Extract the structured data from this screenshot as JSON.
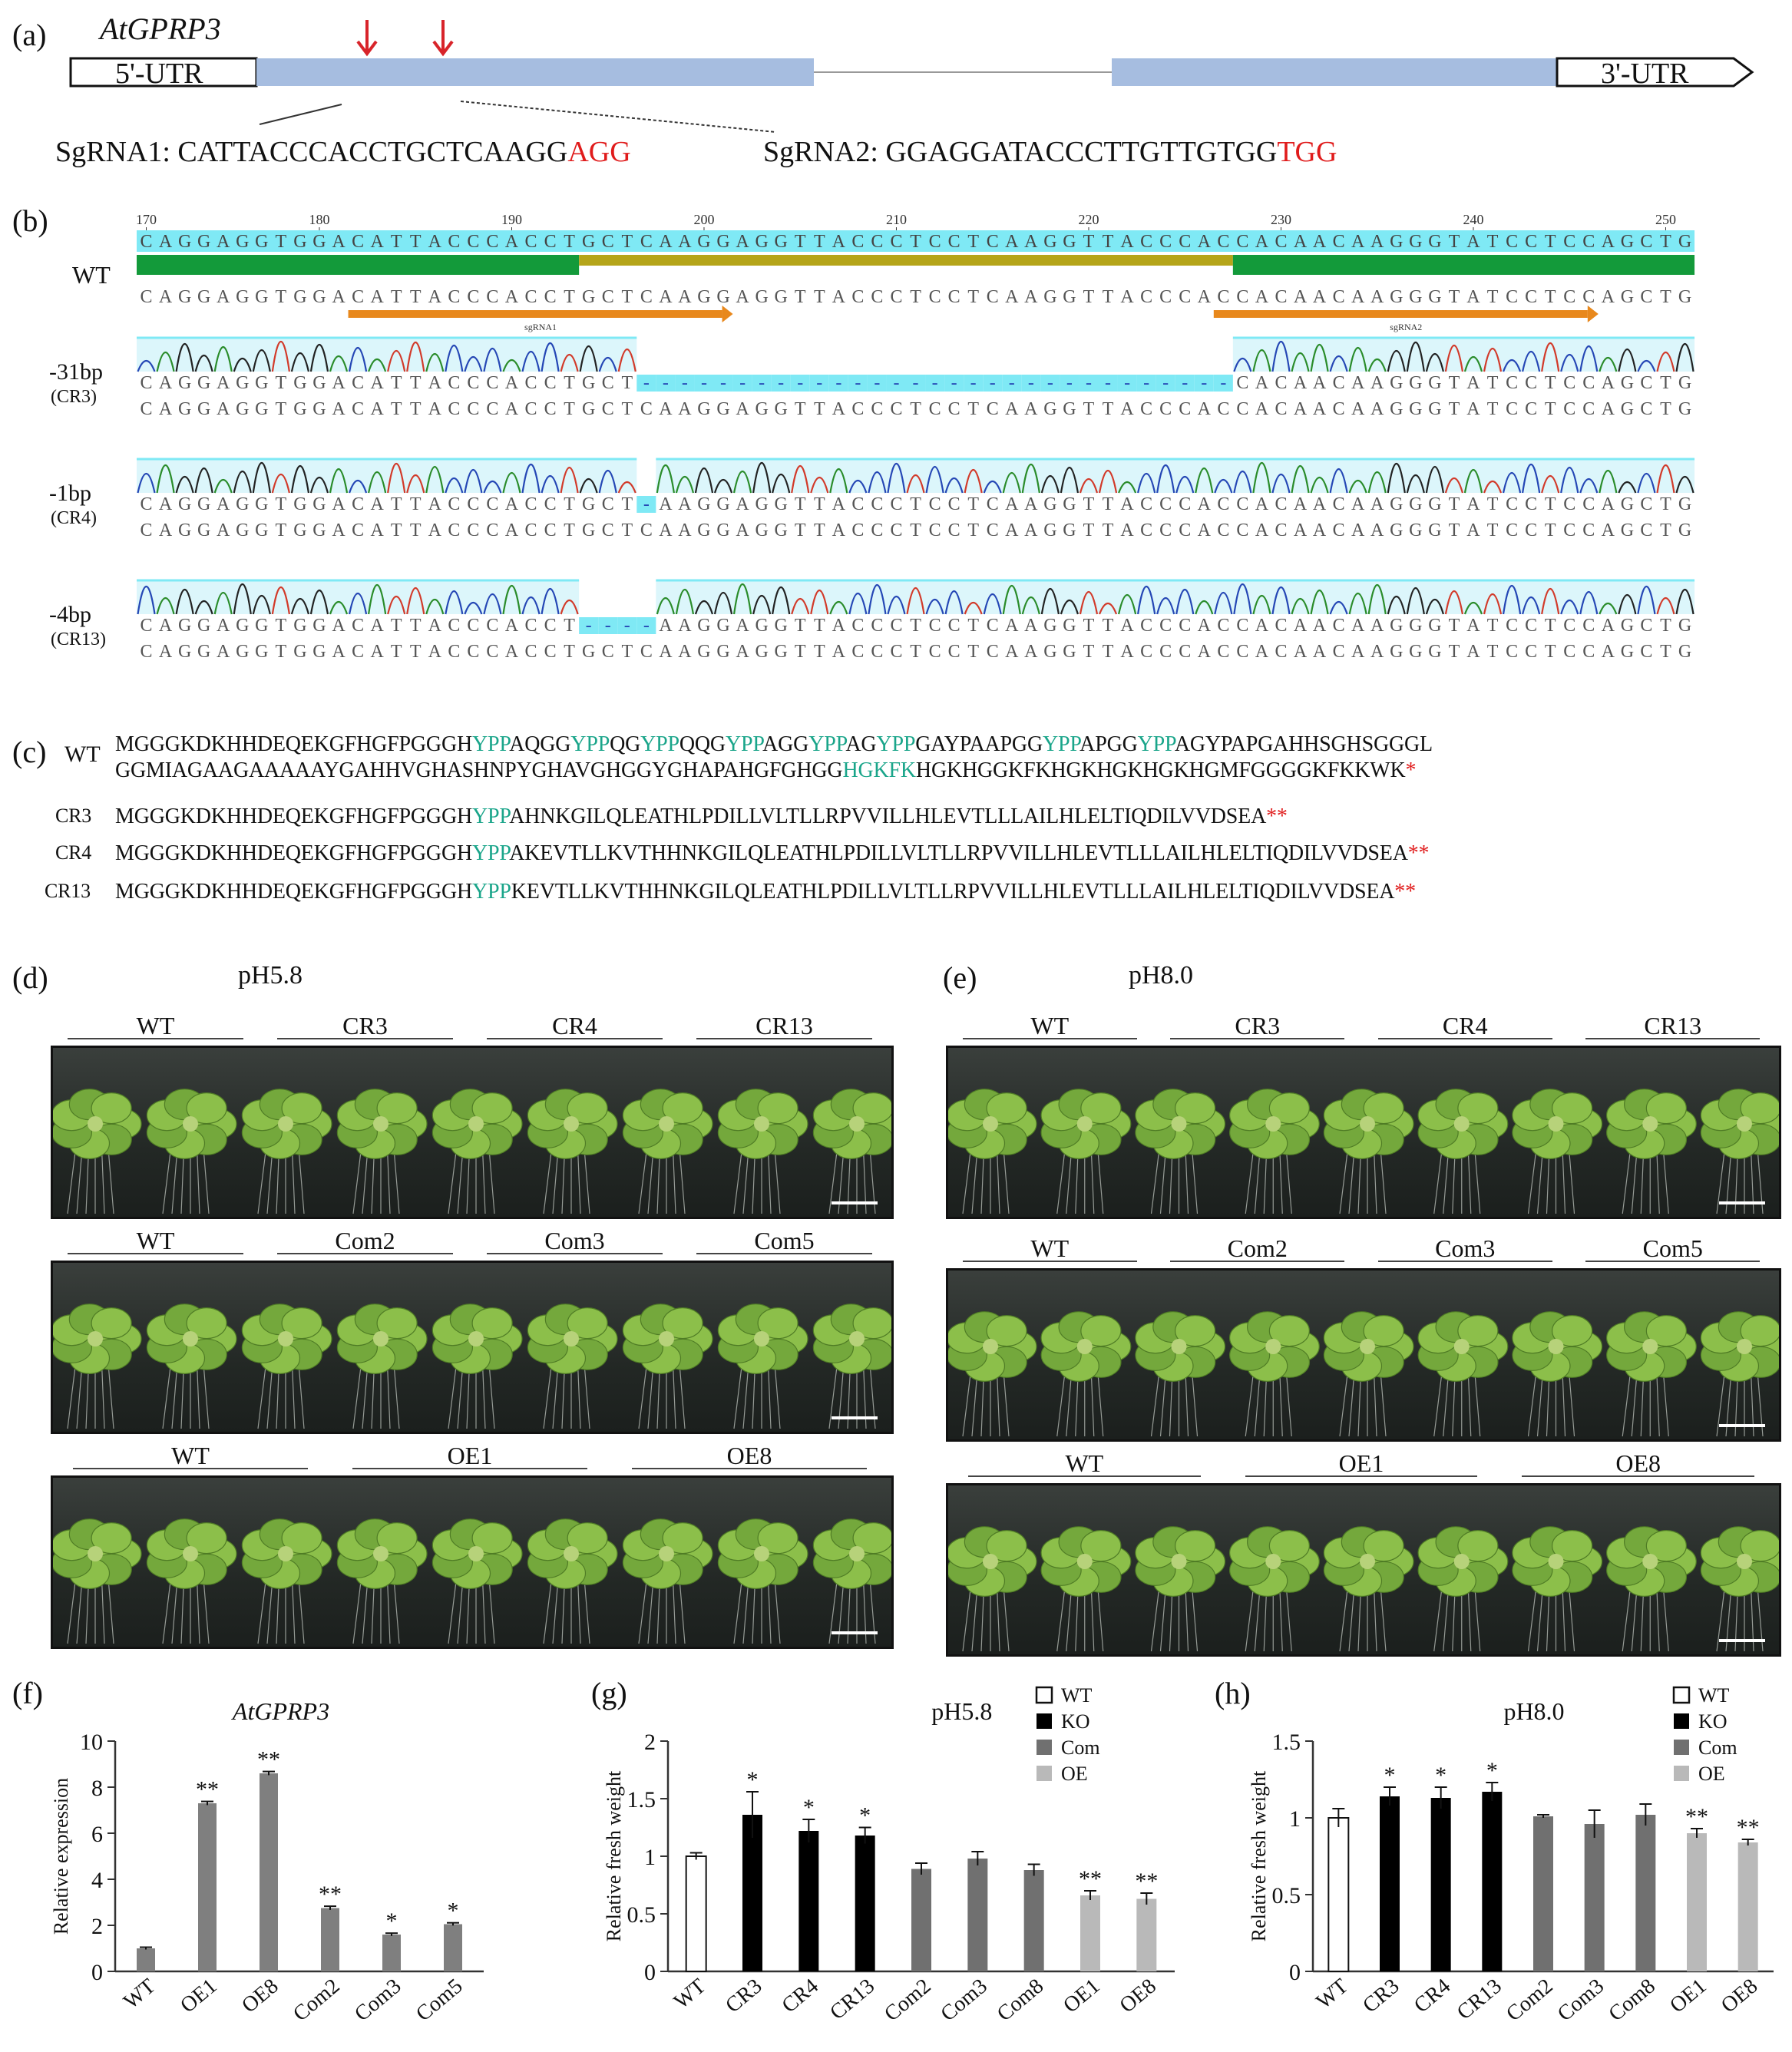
{
  "panels": {
    "a": "(a)",
    "b": "(b)",
    "c": "(c)",
    "d": "(d)",
    "e": "(e)",
    "f": "(f)",
    "g": "(g)",
    "h": "(h)"
  },
  "gene": {
    "name": "AtGPRP3",
    "utr5": "5'-UTR",
    "utr3": "3'-UTR",
    "sgrna1_prefix": "SgRNA1: ",
    "sgrna1_seq": "CATTACCCACCTGCTCAAGG",
    "sgrna1_pam": "AGG",
    "sgrna2_prefix": "SgRNA2: ",
    "sgrna2_seq": "GGAGGATACCCTTGTTGTGG",
    "sgrna2_pam": "TGG",
    "colors": {
      "exon": "#a6bde0",
      "arrow": "#d8242a",
      "pam": "#e01b1b"
    }
  },
  "alignment": {
    "ruler": [
      "170",
      "180",
      "190",
      "200",
      "210",
      "220",
      "230",
      "240",
      "250"
    ],
    "wt_label": "WT",
    "ref_top": "CAGGAGGTGGACATTACCCACCTGCTCAAGGAGGTTACCCTCCTCAAGGTTACCCACCACAACAAGGGTATCCTCCAGCTG",
    "wt_seq": "CAGGAGGTGGACATTACCCACCTGCTCAAGGAGGTTACCCTCCTCAAGGTTACCCACCACAACAAGGGTATCCTCCAGCTG",
    "guide1": "sgRNA1",
    "guide2": "sgRNA2",
    "mutants": [
      {
        "label": "-31bp",
        "line": "(CR3)",
        "seq": "CAGGAGGTGGACATTACCCACCTGCT-------------------------------CACAACAAGGGTATCCTCCAGCTG",
        "ref": "CAGGAGGTGGACATTACCCACCTGCTCAAGGAGGTTACCCTCCTCAAGGTTACCCACCACAACAAGGGTATCCTCCAGCTG"
      },
      {
        "label": "-1bp",
        "line": "(CR4)",
        "seq": "CAGGAGGTGGACATTACCCACCTGCT-AAGGAGGTTACCCTCCTCAAGGTTACCCACCACAACAAGGGTATCCTCCAGCTG",
        "ref": "CAGGAGGTGGACATTACCCACCTGCTCAAGGAGGTTACCCTCCTCAAGGTTACCCACCACAACAAGGGTATCCTCCAGCTG"
      },
      {
        "label": "-4bp",
        "line": "(CR13)",
        "seq": "CAGGAGGTGGACATTACCCACCT----AAGGAGGTTACCCTCCTCAAGGTTACCCACCACAACAAGGGTATCCTCCAGCTG",
        "ref": "CAGGAGGTGGACATTACCCACCTGCTCAAGGAGGTTACCCTCCTCAAGGTTACCCACCACAACAAGGGTATCCTCCAGCTG"
      }
    ],
    "colors": {
      "highlight": "#7fe9f5",
      "green": "#139a3a",
      "olive": "#b5a51a",
      "orange": "#e8881c"
    }
  },
  "protein": {
    "wt_label": "WT",
    "wt_line1_parts": [
      [
        "MGGGKDKHHDEQEKGFHGFPGGGH",
        ""
      ],
      [
        "YPP",
        "g"
      ],
      [
        "AQGG",
        ""
      ],
      [
        "YPP",
        "g"
      ],
      [
        "QG",
        ""
      ],
      [
        "YPP",
        "g"
      ],
      [
        "QQG",
        ""
      ],
      [
        "YPP",
        "g"
      ],
      [
        "AGG",
        ""
      ],
      [
        "YPP",
        "g"
      ],
      [
        "AG",
        ""
      ],
      [
        "YPP",
        "g"
      ],
      [
        "GAYPAAPGG",
        ""
      ],
      [
        "YPP",
        "g"
      ],
      [
        "APGG",
        ""
      ],
      [
        "YPP",
        "g"
      ],
      [
        "AGYPAPGAHHSGHSGGGL",
        ""
      ]
    ],
    "wt_line2_parts": [
      [
        "GGMIAGAAGAAAAAYGAHHVGHASHNPYGHAVGHGGYGHAPAHGFGHGG",
        ""
      ],
      [
        "HGKFK",
        "g"
      ],
      [
        "HGKHGGKFKHGKHGKHGKHGMFGGGGKFKKWK",
        ""
      ],
      [
        "*",
        "r"
      ]
    ],
    "mutants": [
      {
        "label": "CR3",
        "parts": [
          [
            "MGGGKDKHHDEQEKGFHGFPGGGH",
            ""
          ],
          [
            "YPP",
            "g"
          ],
          [
            "AHNKGILQLEATHLPDILLVLTLLRPVVILLHLEVTLLLAILHLELTIQDILVVDSEA",
            ""
          ],
          [
            "**",
            "r"
          ]
        ]
      },
      {
        "label": "CR4",
        "parts": [
          [
            "MGGGKDKHHDEQEKGFHGFPGGGH",
            ""
          ],
          [
            "YPP",
            "g"
          ],
          [
            "AKEVTLLKVTHHNKGILQLEATHLPDILLVLTLLRPVVILLHLEVTLLLAILHLELTIQDILVVDSEA",
            ""
          ],
          [
            "**",
            "r"
          ]
        ]
      },
      {
        "label": "CR13",
        "parts": [
          [
            "MGGGKDKHHDEQEKGFHGFPGGGH",
            ""
          ],
          [
            "YPP",
            "g"
          ],
          [
            "KEVTLLKVTHHNKGILQLEATHLPDILLVLTLLRPVVILLHLEVTLLLAILHLELTIQDILVVDSEA",
            ""
          ],
          [
            "**",
            "r"
          ]
        ]
      }
    ]
  },
  "plates": {
    "d": {
      "title": "pH5.8",
      "rows": [
        [
          "WT",
          "CR3",
          "CR4",
          "CR13"
        ],
        [
          "WT",
          "Com2",
          "Com3",
          "Com5"
        ],
        [
          "WT",
          "OE1",
          "OE8"
        ]
      ]
    },
    "e": {
      "title": "pH8.0",
      "rows": [
        [
          "WT",
          "CR3",
          "CR4",
          "CR13"
        ],
        [
          "WT",
          "Com2",
          "Com3",
          "Com5"
        ],
        [
          "WT",
          "OE1",
          "OE8"
        ]
      ]
    }
  },
  "chart_data": [
    {
      "panel": "f",
      "type": "bar",
      "title": "AtGPRP3",
      "ylabel": "Relative expression",
      "categories": [
        "WT",
        "OE1",
        "OE8",
        "Com2",
        "Com3",
        "Com5"
      ],
      "values": [
        1.0,
        7.3,
        8.6,
        2.75,
        1.6,
        2.05
      ],
      "errors": [
        0.05,
        0.08,
        0.08,
        0.08,
        0.06,
        0.06
      ],
      "sig": [
        "",
        "**",
        "**",
        "**",
        "*",
        "*"
      ],
      "ylim": [
        0,
        10
      ],
      "yticks": [
        "0",
        "2",
        "4",
        "6",
        "8",
        "10"
      ],
      "bar_color": "#7f7f7f"
    },
    {
      "panel": "g",
      "type": "bar",
      "title": "pH5.8",
      "ylabel": "Relative fresh weight",
      "categories": [
        "WT",
        "CR3",
        "CR4",
        "CR13",
        "Com2",
        "Com3",
        "Com8",
        "OE1",
        "OE8"
      ],
      "values": [
        1.0,
        1.36,
        1.22,
        1.18,
        0.89,
        0.98,
        0.88,
        0.66,
        0.63
      ],
      "errors": [
        0.03,
        0.2,
        0.1,
        0.07,
        0.05,
        0.06,
        0.05,
        0.04,
        0.05
      ],
      "groups": [
        "WT",
        "KO",
        "KO",
        "KO",
        "Com",
        "Com",
        "Com",
        "OE",
        "OE"
      ],
      "sig": [
        "",
        "*",
        "*",
        "*",
        "",
        "",
        "",
        "**",
        "**"
      ],
      "ylim": [
        0,
        2
      ],
      "yticks": [
        "0",
        "0.5",
        "1",
        "1.5",
        "2"
      ],
      "legend": [
        "WT",
        "KO",
        "Com",
        "OE"
      ],
      "legend_position": "top-right"
    },
    {
      "panel": "h",
      "type": "bar",
      "title": "pH8.0",
      "ylabel": "Relative fresh weight",
      "categories": [
        "WT",
        "CR3",
        "CR4",
        "CR13",
        "Com2",
        "Com3",
        "Com8",
        "OE1",
        "OE8"
      ],
      "values": [
        1.0,
        1.14,
        1.13,
        1.17,
        1.01,
        0.96,
        1.02,
        0.9,
        0.84
      ],
      "errors": [
        0.06,
        0.06,
        0.07,
        0.06,
        0.01,
        0.09,
        0.07,
        0.03,
        0.02
      ],
      "groups": [
        "WT",
        "KO",
        "KO",
        "KO",
        "Com",
        "Com",
        "Com",
        "OE",
        "OE"
      ],
      "sig": [
        "",
        "*",
        "*",
        "*",
        "",
        "",
        "",
        "**",
        "**"
      ],
      "ylim": [
        0,
        1.5
      ],
      "yticks": [
        "0",
        "0.5",
        "1",
        "1.5"
      ],
      "legend": [
        "WT",
        "KO",
        "Com",
        "OE"
      ],
      "legend_position": "top-right"
    }
  ],
  "group_colors": {
    "WT": "#ffffff",
    "KO": "#000000",
    "Com": "#707070",
    "OE": "#b9b9b9"
  }
}
